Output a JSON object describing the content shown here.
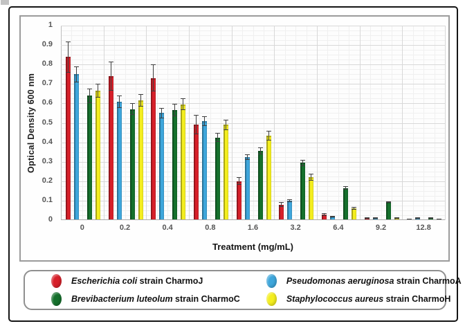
{
  "chart_data": {
    "type": "bar",
    "title": "",
    "xlabel": "Treatment (mg/mL)",
    "ylabel": "Optical Density 600 nm",
    "ylim": [
      0,
      1
    ],
    "ytick_step": 0.1,
    "grid": true,
    "error_bars": true,
    "legend_position": "bottom",
    "categories": [
      "0",
      "0.2",
      "0.4",
      "0.8",
      "1.6",
      "3.2",
      "6.4",
      "9.2",
      "12.8"
    ],
    "series": [
      {
        "name": "Escherichia coli strain CharmoJ",
        "name_italic": "Escherichia coli",
        "name_rest": " strain CharmoJ",
        "color": "#d7202a",
        "values": [
          0.84,
          0.74,
          0.73,
          0.49,
          0.2,
          0.08,
          0.028,
          0.012,
          0.004
        ],
        "errors": [
          0.08,
          0.075,
          0.07,
          0.05,
          0.02,
          0.012,
          0.006,
          0.004,
          0.002
        ]
      },
      {
        "name": "Pseudomonas aeruginosa strain CharmoA",
        "name_italic": "Pseudomonas aeruginosa",
        "name_rest": " strain CharmoA",
        "color": "#3ea6db",
        "values": [
          0.75,
          0.61,
          0.55,
          0.51,
          0.325,
          0.1,
          0.018,
          0.012,
          0.01
        ],
        "errors": [
          0.04,
          0.032,
          0.028,
          0.025,
          0.015,
          0.006,
          0.004,
          0.003,
          0.003
        ]
      },
      {
        "name": "Brevibacterium luteolum strain CharmoC",
        "name_italic": "Brevibacterium luteolum",
        "name_rest": " strain CharmoC",
        "color": "#15702c",
        "values": [
          0.64,
          0.57,
          0.565,
          0.425,
          0.355,
          0.295,
          0.165,
          0.093,
          0.013
        ],
        "errors": [
          0.037,
          0.03,
          0.032,
          0.022,
          0.018,
          0.016,
          0.008,
          0.005,
          0.003
        ]
      },
      {
        "name": "Staphylococcus aureus strain CharmoH",
        "name_italic": "Staphylococcus aureus",
        "name_rest": " strain CharmoH",
        "color": "#f4ee1f",
        "values": [
          0.665,
          0.615,
          0.595,
          0.49,
          0.435,
          0.22,
          0.06,
          0.012,
          0.005
        ],
        "errors": [
          0.035,
          0.033,
          0.03,
          0.026,
          0.025,
          0.018,
          0.008,
          0.003,
          0.002
        ]
      }
    ]
  }
}
